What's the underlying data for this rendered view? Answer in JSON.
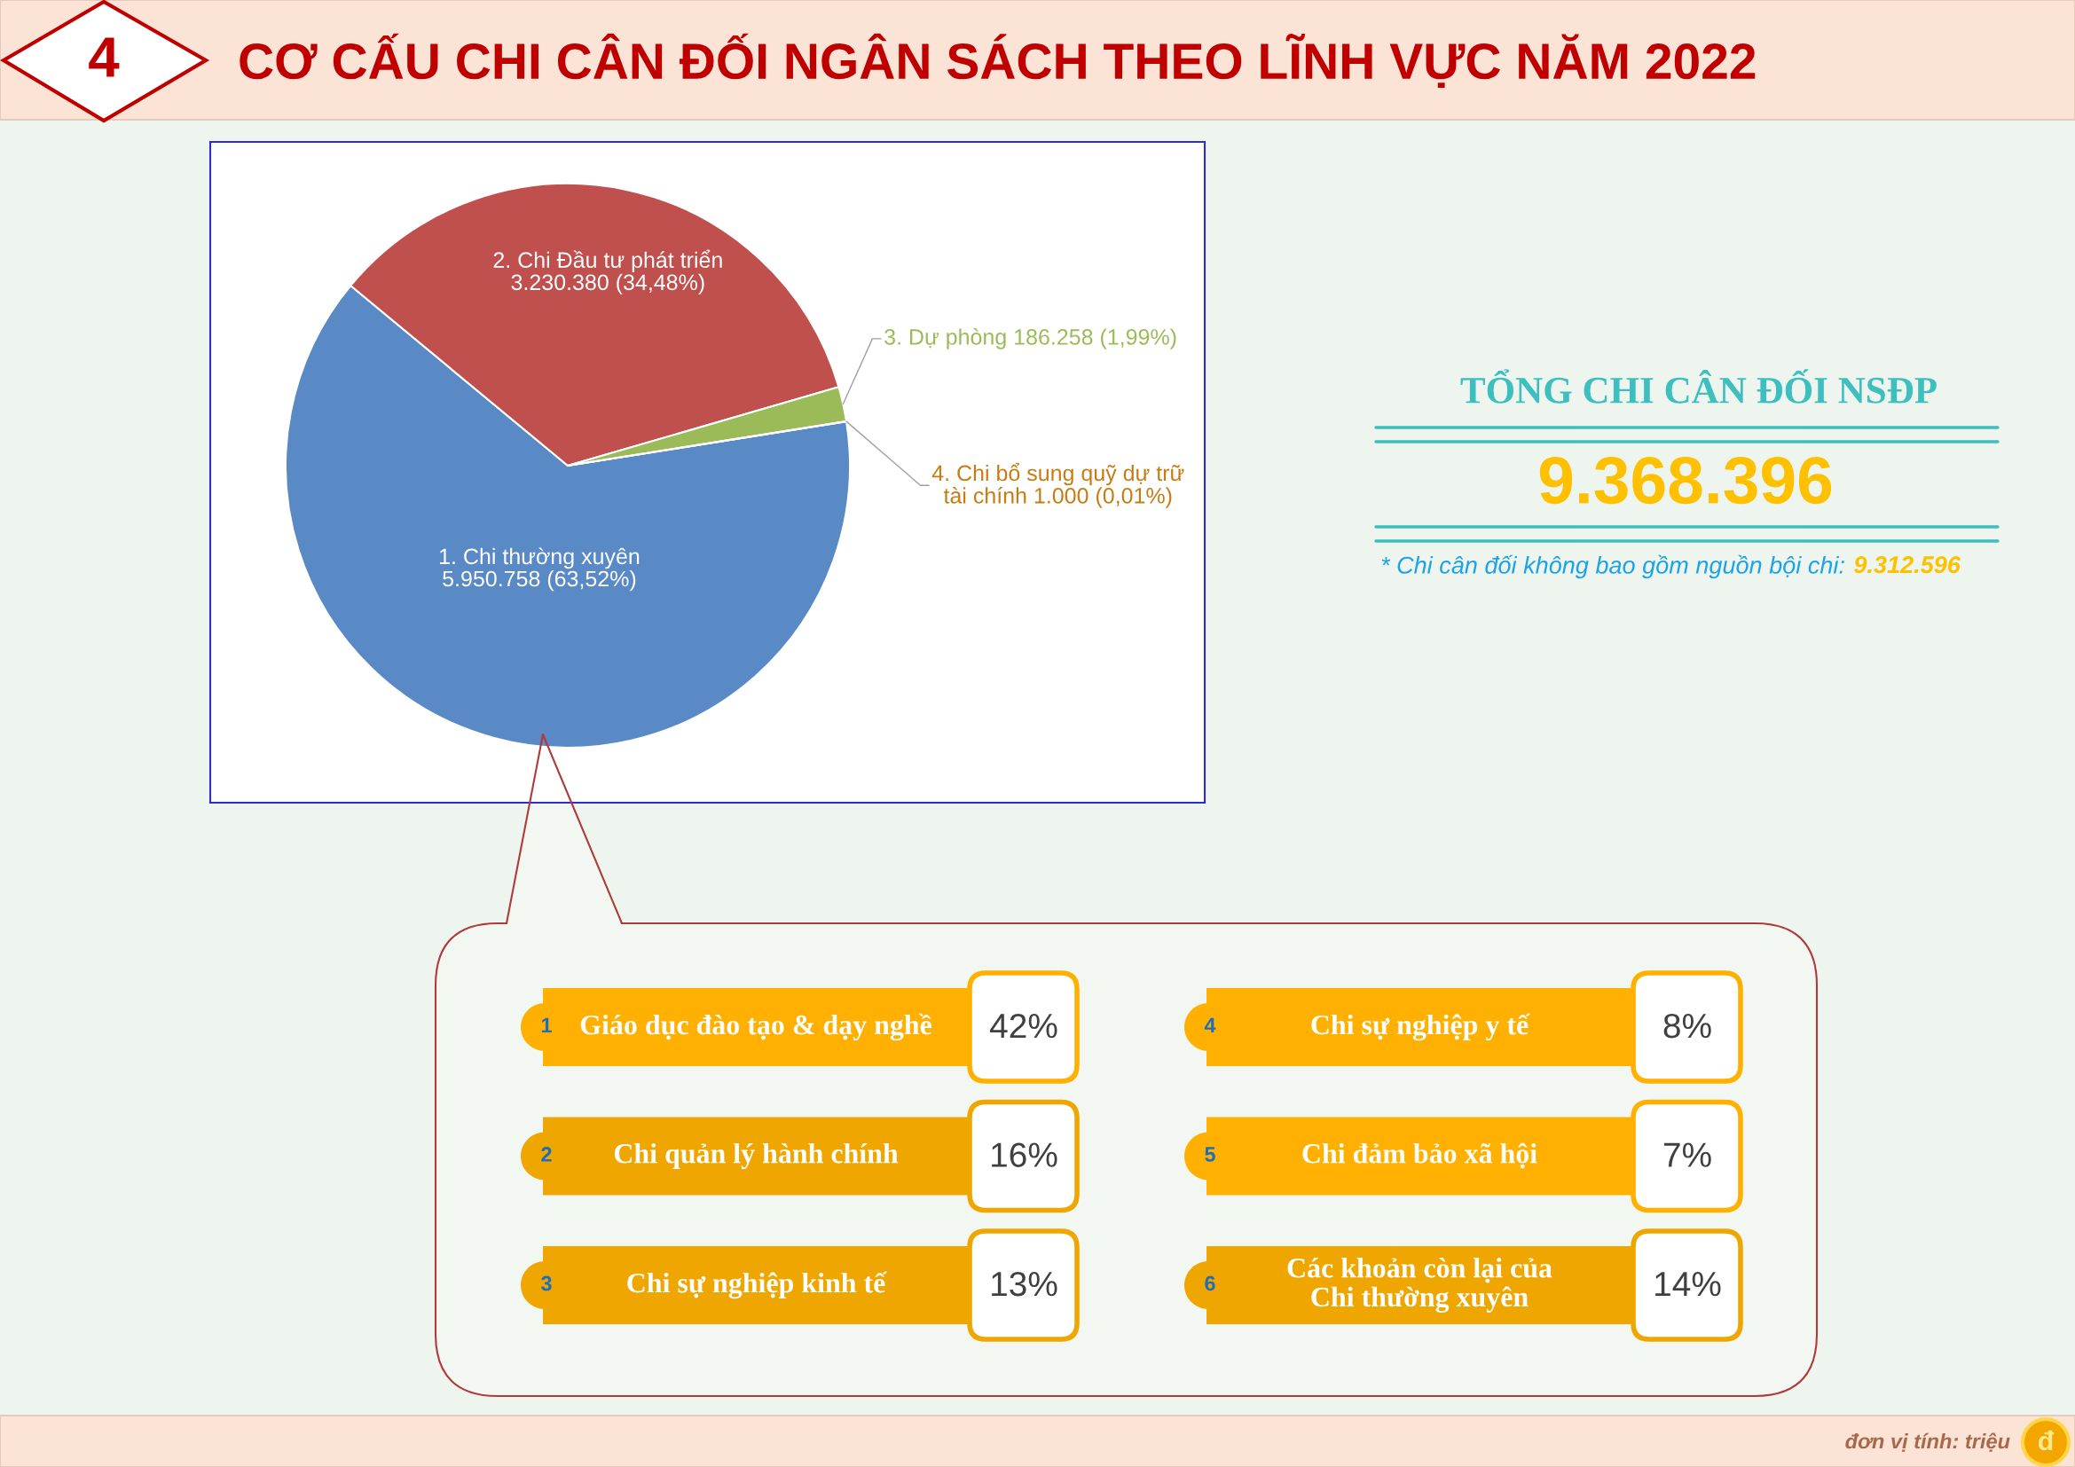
{
  "chart_data": [
    {
      "type": "pie",
      "title": "CƠ CẤU CHI CÂN ĐỐI NGÂN SÁCH THEO LĨNH VỰC NĂM 2022",
      "categories": [
        "1. Chi thường xuyên",
        "2. Chi Đầu tư phát triển",
        "3. Dự phòng",
        "4. Chi bổ sung quỹ dự trữ tài chính"
      ],
      "values": [
        5950758,
        3230380,
        186258,
        1000
      ],
      "value_labels": [
        "5.950.758 (63,52%)",
        "3.230.380 (34,48%)",
        "186.258 (1,99%)",
        "1.000 (0,01%)"
      ],
      "colors": [
        "#5a8ac6",
        "#c0504d",
        "#9bbb59",
        "#c77c12"
      ],
      "annotations": [
        "4",
        "đơn vị tính: triệu",
        "đ"
      ]
    },
    {
      "type": "other",
      "title": "TỔNG CHI CÂN ĐỐI NSĐP",
      "annotations": [
        "9.368.396",
        "* Chi cân đối không bao gồm nguồn bội chi:",
        "9.312.596"
      ]
    },
    {
      "type": "other",
      "categories": [
        "Giáo dục đào tạo & dạy nghề",
        "Chi quản lý hành chính",
        "Chi sự nghiệp kinh tế",
        "Chi sự nghiệp y tế",
        "Chi đảm bảo xã hội",
        "Các khoản còn lại của Chi thường xuyên"
      ],
      "values": [
        42,
        16,
        13,
        8,
        7,
        14
      ],
      "value_labels": [
        "42%",
        "16%",
        "13%",
        "8%",
        "7%",
        "14%"
      ],
      "colors": [
        "#ffb000",
        "#f0a600",
        "#f0a600",
        "#ffb000",
        "#ffb000",
        "#f0a600"
      ],
      "annotations": [
        "1",
        "2",
        "3",
        "4",
        "5",
        "6"
      ]
    }
  ]
}
